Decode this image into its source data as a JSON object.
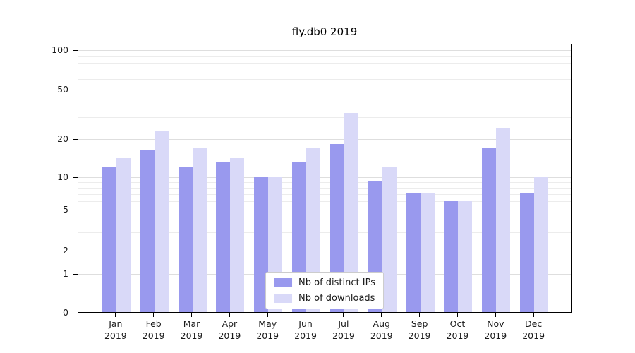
{
  "chart_data": {
    "type": "bar",
    "title": "fly.db0 2019",
    "categories": [
      {
        "month": "Jan",
        "year": "2019"
      },
      {
        "month": "Feb",
        "year": "2019"
      },
      {
        "month": "Mar",
        "year": "2019"
      },
      {
        "month": "Apr",
        "year": "2019"
      },
      {
        "month": "May",
        "year": "2019"
      },
      {
        "month": "Jun",
        "year": "2019"
      },
      {
        "month": "Jul",
        "year": "2019"
      },
      {
        "month": "Aug",
        "year": "2019"
      },
      {
        "month": "Sep",
        "year": "2019"
      },
      {
        "month": "Oct",
        "year": "2019"
      },
      {
        "month": "Nov",
        "year": "2019"
      },
      {
        "month": "Dec",
        "year": "2019"
      }
    ],
    "series": [
      {
        "name": "Nb of distinct IPs",
        "color": "#9999ee",
        "values": [
          12,
          16,
          12,
          13,
          10,
          13,
          18,
          9,
          7,
          6,
          17,
          7
        ]
      },
      {
        "name": "Nb of downloads",
        "color": "#d9d9f8",
        "values": [
          14,
          23,
          17,
          14,
          10,
          17,
          32,
          12,
          7,
          6,
          24,
          10
        ]
      }
    ],
    "y_ticks": [
      0,
      1,
      2,
      5,
      10,
      20,
      50,
      100
    ],
    "y_scale": "symlog",
    "ylim": [
      0,
      110
    ],
    "grid": true,
    "legend_position": "lower-center-inside"
  }
}
